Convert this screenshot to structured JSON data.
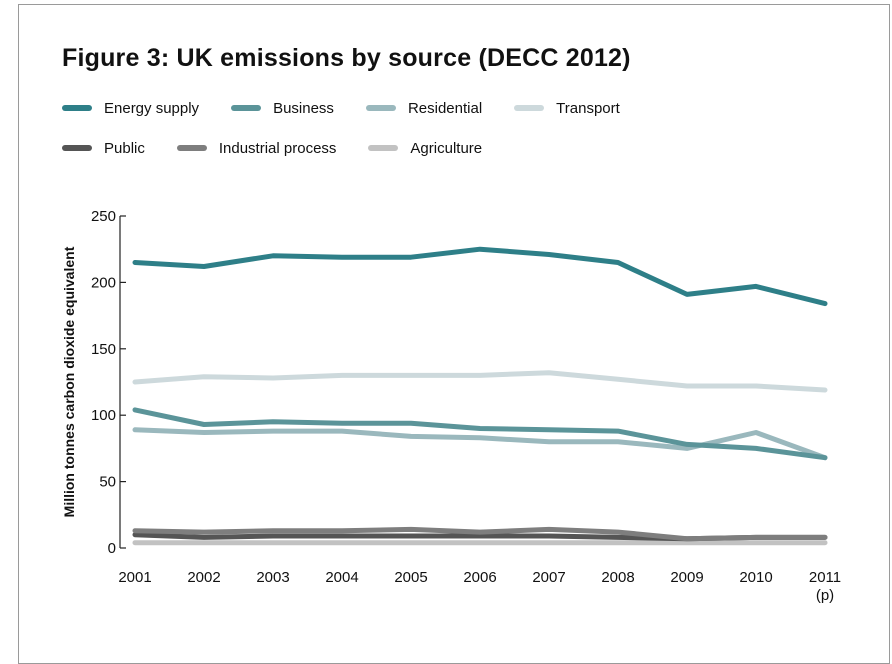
{
  "chart_data": {
    "type": "line",
    "title": "Figure 3: UK emissions by source (DECC 2012)",
    "xlabel": "",
    "ylabel": "Million tonnes carbon dioxide equivalent",
    "x": [
      "2001",
      "2002",
      "2003",
      "2004",
      "2005",
      "2006",
      "2007",
      "2008",
      "2009",
      "2010",
      "2011"
    ],
    "x_tick_sublabels": [
      "",
      "",
      "",
      "",
      "",
      "",
      "",
      "",
      "",
      "",
      "(p)"
    ],
    "yticks": [
      0,
      50,
      100,
      150,
      200,
      250
    ],
    "ylim": [
      0,
      250
    ],
    "grid": false,
    "legend_position": "top",
    "series": [
      {
        "name": "Energy supply",
        "color": "#2e7f88",
        "values": [
          215,
          212,
          220,
          219,
          219,
          225,
          221,
          215,
          191,
          197,
          184
        ]
      },
      {
        "name": "Business",
        "color": "#5b9499",
        "values": [
          104,
          93,
          95,
          94,
          94,
          90,
          89,
          88,
          78,
          75,
          68
        ]
      },
      {
        "name": "Residential",
        "color": "#9ab8bd",
        "values": [
          89,
          87,
          88,
          88,
          84,
          83,
          80,
          80,
          75,
          87,
          68
        ]
      },
      {
        "name": "Transport",
        "color": "#cdd9dc",
        "values": [
          125,
          129,
          128,
          130,
          130,
          130,
          132,
          127,
          122,
          122,
          119
        ]
      },
      {
        "name": "Public",
        "color": "#555555",
        "values": [
          10,
          8,
          9,
          9,
          9,
          9,
          9,
          8,
          7,
          8,
          8
        ]
      },
      {
        "name": "Industrial process",
        "color": "#7e7e7e",
        "values": [
          13,
          12,
          13,
          13,
          14,
          12,
          14,
          12,
          7,
          8,
          8
        ]
      },
      {
        "name": "Agriculture",
        "color": "#c2c2c2",
        "values": [
          4,
          4,
          4,
          4,
          4,
          4,
          4,
          4,
          4,
          4,
          4
        ]
      }
    ],
    "legend_rows": [
      [
        0,
        1,
        2,
        3
      ],
      [
        4,
        5,
        6
      ]
    ]
  }
}
